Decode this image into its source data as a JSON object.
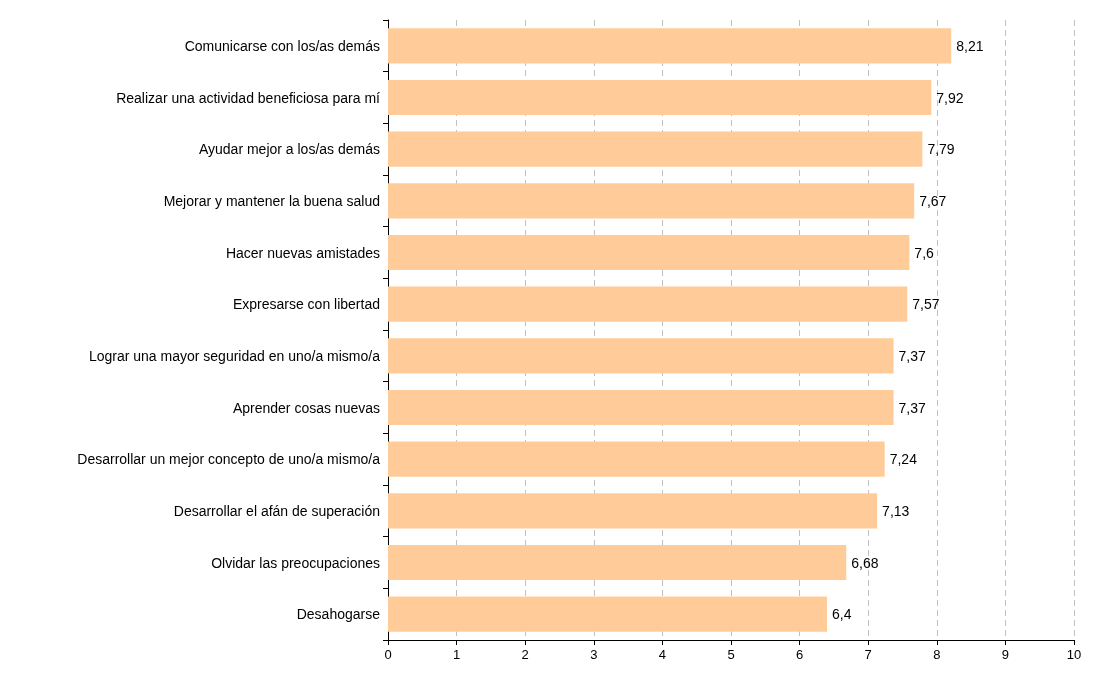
{
  "chart_data": {
    "type": "bar",
    "orientation": "horizontal",
    "categories": [
      "Comunicarse con los/as demás",
      "Realizar una actividad beneficiosa para mí",
      "Ayudar mejor a los/as demás",
      "Mejorar y mantener la buena salud",
      "Hacer nuevas amistades",
      "Expresarse con libertad",
      "Lograr una mayor seguridad en uno/a mismo/a",
      "Aprender cosas nuevas",
      "Desarrollar un mejor concepto de uno/a mismo/a",
      "Desarrollar el afán de superación",
      "Olvidar las preocupaciones",
      "Desahogarse"
    ],
    "values": [
      8.21,
      7.92,
      7.79,
      7.67,
      7.6,
      7.57,
      7.37,
      7.37,
      7.24,
      7.13,
      6.68,
      6.4
    ],
    "value_labels": [
      "8,21",
      "7,92",
      "7,79",
      "7,67",
      "7,6",
      "7,57",
      "7,37",
      "7,37",
      "7,24",
      "7,13",
      "6,68",
      "6,4"
    ],
    "color": "#ffcc99",
    "xlim": [
      0,
      10
    ],
    "xticks": [
      0,
      1,
      2,
      3,
      4,
      5,
      6,
      7,
      8,
      9,
      10
    ],
    "grid": "x"
  }
}
